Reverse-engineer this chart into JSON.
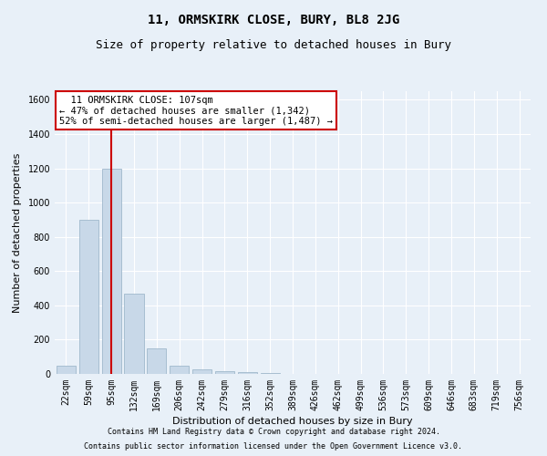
{
  "title": "11, ORMSKIRK CLOSE, BURY, BL8 2JG",
  "subtitle": "Size of property relative to detached houses in Bury",
  "xlabel": "Distribution of detached houses by size in Bury",
  "ylabel": "Number of detached properties",
  "footnote1": "Contains HM Land Registry data © Crown copyright and database right 2024.",
  "footnote2": "Contains public sector information licensed under the Open Government Licence v3.0.",
  "categories": [
    "22sqm",
    "59sqm",
    "95sqm",
    "132sqm",
    "169sqm",
    "206sqm",
    "242sqm",
    "279sqm",
    "316sqm",
    "352sqm",
    "389sqm",
    "426sqm",
    "462sqm",
    "499sqm",
    "536sqm",
    "573sqm",
    "609sqm",
    "646sqm",
    "683sqm",
    "719sqm",
    "756sqm"
  ],
  "values": [
    50,
    900,
    1200,
    470,
    150,
    50,
    25,
    15,
    10,
    5,
    0,
    0,
    0,
    0,
    0,
    0,
    0,
    0,
    0,
    0,
    0
  ],
  "bar_color": "#c8d8e8",
  "bar_edge_color": "#a0b8cc",
  "vline_x": 2,
  "vline_color": "#cc0000",
  "annotation_text": "  11 ORMSKIRK CLOSE: 107sqm\n← 47% of detached houses are smaller (1,342)\n52% of semi-detached houses are larger (1,487) →",
  "annotation_box_color": "#ffffff",
  "annotation_box_edge": "#cc0000",
  "ylim": [
    0,
    1650
  ],
  "yticks": [
    0,
    200,
    400,
    600,
    800,
    1000,
    1200,
    1400,
    1600
  ],
  "bg_color": "#e8f0f8",
  "plot_bg": "#e8f0f8",
  "grid_color": "#ffffff",
  "title_fontsize": 10,
  "subtitle_fontsize": 9,
  "annot_fontsize": 7.5,
  "axis_fontsize": 8,
  "tick_fontsize": 7,
  "footnote_fontsize": 6
}
